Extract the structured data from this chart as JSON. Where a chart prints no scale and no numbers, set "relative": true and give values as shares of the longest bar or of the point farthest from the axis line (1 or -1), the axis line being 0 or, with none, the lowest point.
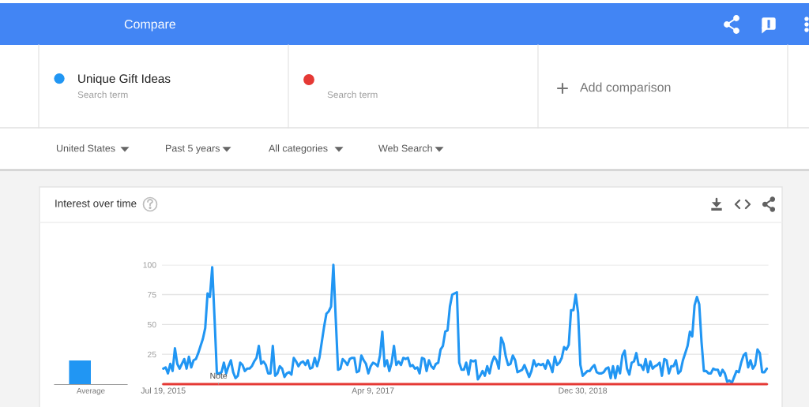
{
  "chart_data": [
    {
      "type": "bar",
      "categories": [
        "Average"
      ],
      "values": [
        1
      ],
      "color": "#2196f3",
      "relative": true
    },
    {
      "type": "line",
      "title": "Interest over time",
      "x": [
        "2015-07-19",
        "2015-07-26",
        "2015-08-02",
        "2015-08-09",
        "2015-08-16",
        "2015-08-23",
        "2015-08-30",
        "2015-09-06",
        "2015-09-13",
        "2015-09-20",
        "2015-09-27",
        "2015-10-04",
        "2015-10-11",
        "2015-10-18",
        "2015-10-25",
        "2015-11-01",
        "2015-11-08",
        "2015-11-15",
        "2015-11-22",
        "2015-11-29",
        "2015-12-06",
        "2015-12-13",
        "2015-12-20",
        "2015-12-27",
        "2016-01-03",
        "2016-01-10",
        "2016-01-17",
        "2016-01-24",
        "2016-01-31",
        "2016-02-07",
        "2016-02-14",
        "2016-02-21",
        "2016-02-28",
        "2016-03-06",
        "2016-03-13",
        "2016-03-20",
        "2016-03-27",
        "2016-04-03",
        "2016-04-10",
        "2016-04-17",
        "2016-04-24",
        "2016-05-01",
        "2016-05-08",
        "2016-05-15",
        "2016-05-22",
        "2016-05-29",
        "2016-06-05",
        "2016-06-12",
        "2016-06-19",
        "2016-06-26",
        "2016-07-03",
        "2016-07-10",
        "2016-07-17",
        "2016-07-24",
        "2016-07-31",
        "2016-08-07",
        "2016-08-14",
        "2016-08-21",
        "2016-08-28",
        "2016-09-04",
        "2016-09-11",
        "2016-09-18",
        "2016-09-25",
        "2016-10-02",
        "2016-10-09",
        "2016-10-16",
        "2016-10-23",
        "2016-10-30",
        "2016-11-06",
        "2016-11-13",
        "2016-11-20",
        "2016-11-27",
        "2016-12-04",
        "2016-12-11",
        "2016-12-18",
        "2016-12-25",
        "2017-01-01",
        "2017-01-08",
        "2017-01-15",
        "2017-01-22",
        "2017-01-29",
        "2017-02-05",
        "2017-02-12",
        "2017-02-19",
        "2017-02-26",
        "2017-03-05",
        "2017-03-12",
        "2017-03-19",
        "2017-03-26",
        "2017-04-02",
        "2017-04-09",
        "2017-04-16",
        "2017-04-23",
        "2017-04-30",
        "2017-05-07",
        "2017-05-14",
        "2017-05-21",
        "2017-05-28",
        "2017-06-04",
        "2017-06-11",
        "2017-06-18",
        "2017-06-25",
        "2017-07-02",
        "2017-07-09",
        "2017-07-16",
        "2017-07-23",
        "2017-07-30",
        "2017-08-06",
        "2017-08-13",
        "2017-08-20",
        "2017-08-27",
        "2017-09-03",
        "2017-09-10",
        "2017-09-17",
        "2017-09-24",
        "2017-10-01",
        "2017-10-08",
        "2017-10-15",
        "2017-10-22",
        "2017-10-29",
        "2017-11-05",
        "2017-11-12",
        "2017-11-19",
        "2017-11-26",
        "2017-12-03",
        "2017-12-10",
        "2017-12-17",
        "2017-12-24",
        "2017-12-31",
        "2018-01-07",
        "2018-01-14",
        "2018-01-21",
        "2018-01-28",
        "2018-02-04",
        "2018-02-11",
        "2018-02-18",
        "2018-02-25",
        "2018-03-04",
        "2018-03-11",
        "2018-03-18",
        "2018-03-25",
        "2018-04-01",
        "2018-04-08",
        "2018-04-15",
        "2018-04-22",
        "2018-04-29",
        "2018-05-06",
        "2018-05-13",
        "2018-05-20",
        "2018-05-27",
        "2018-06-03",
        "2018-06-10",
        "2018-06-17",
        "2018-06-24",
        "2018-07-01",
        "2018-07-08",
        "2018-07-15",
        "2018-07-22",
        "2018-07-29",
        "2018-08-05",
        "2018-08-12",
        "2018-08-19",
        "2018-08-26",
        "2018-09-02",
        "2018-09-09",
        "2018-09-16",
        "2018-09-23",
        "2018-09-30",
        "2018-10-07",
        "2018-10-14",
        "2018-10-21",
        "2018-10-28",
        "2018-11-04",
        "2018-11-11",
        "2018-11-18",
        "2018-11-25",
        "2018-12-02",
        "2018-12-09",
        "2018-12-16",
        "2018-12-23",
        "2018-12-30",
        "2019-01-06",
        "2019-01-13",
        "2019-01-20",
        "2019-01-27",
        "2019-02-03",
        "2019-02-10",
        "2019-02-17",
        "2019-02-24",
        "2019-03-03",
        "2019-03-10",
        "2019-03-17",
        "2019-03-24",
        "2019-03-31",
        "2019-04-07",
        "2019-04-14",
        "2019-04-21",
        "2019-04-28",
        "2019-05-05",
        "2019-05-12",
        "2019-05-19",
        "2019-05-26",
        "2019-06-02",
        "2019-06-09",
        "2019-06-16",
        "2019-06-23",
        "2019-06-30",
        "2019-07-07",
        "2019-07-14",
        "2019-07-21",
        "2019-07-28",
        "2019-08-04",
        "2019-08-11",
        "2019-08-18",
        "2019-08-25",
        "2019-09-01",
        "2019-09-08",
        "2019-09-15",
        "2019-09-22",
        "2019-09-29",
        "2019-10-06",
        "2019-10-13",
        "2019-10-20",
        "2019-10-27",
        "2019-11-03",
        "2019-11-10",
        "2019-11-17",
        "2019-11-24",
        "2019-12-01",
        "2019-12-08",
        "2019-12-15",
        "2019-12-22",
        "2019-12-29",
        "2020-01-05",
        "2020-01-12",
        "2020-01-19",
        "2020-01-26",
        "2020-02-02",
        "2020-02-09",
        "2020-02-16",
        "2020-02-23",
        "2020-03-01",
        "2020-03-08",
        "2020-03-15",
        "2020-03-22",
        "2020-03-29",
        "2020-04-05",
        "2020-04-12",
        "2020-04-19",
        "2020-04-26",
        "2020-05-03",
        "2020-05-10",
        "2020-05-17",
        "2020-05-24",
        "2020-05-31",
        "2020-06-07",
        "2020-06-14",
        "2020-06-21",
        "2020-06-28",
        "2020-07-05"
      ],
      "series": [
        {
          "name": "Unique Gift Ideas",
          "color": "#2196f3",
          "values": [
            13,
            14,
            9,
            17,
            11,
            30,
            17,
            13,
            17,
            21,
            13,
            23,
            14,
            20,
            21,
            26,
            32,
            38,
            47,
            76,
            73,
            98,
            55,
            9,
            9,
            10,
            18,
            9,
            15,
            20,
            10,
            5,
            7,
            18,
            16,
            11,
            13,
            13,
            15,
            19,
            22,
            32,
            17,
            19,
            16,
            9,
            9,
            32,
            7,
            9,
            15,
            13,
            6,
            9,
            10,
            8,
            22,
            19,
            15,
            18,
            19,
            16,
            20,
            13,
            14,
            22,
            15,
            22,
            35,
            48,
            59,
            61,
            65,
            100,
            55,
            12,
            13,
            21,
            19,
            16,
            21,
            22,
            22,
            10,
            11,
            24,
            20,
            17,
            9,
            15,
            18,
            17,
            15,
            24,
            44,
            15,
            20,
            11,
            18,
            32,
            16,
            19,
            16,
            22,
            21,
            22,
            15,
            16,
            13,
            14,
            9,
            22,
            21,
            11,
            20,
            15,
            13,
            17,
            18,
            29,
            32,
            44,
            45,
            65,
            75,
            76,
            77,
            18,
            12,
            12,
            18,
            8,
            20,
            19,
            20,
            4,
            7,
            11,
            7,
            15,
            9,
            18,
            23,
            20,
            13,
            39,
            34,
            23,
            16,
            17,
            24,
            20,
            10,
            11,
            12,
            16,
            11,
            6,
            11,
            20,
            15,
            17,
            16,
            17,
            13,
            20,
            16,
            10,
            23,
            16,
            18,
            22,
            31,
            29,
            33,
            62,
            62,
            75,
            60,
            16,
            7,
            9,
            11,
            11,
            14,
            16,
            10,
            9,
            9,
            10,
            13,
            14,
            5,
            15,
            5,
            15,
            9,
            24,
            28,
            13,
            8,
            18,
            19,
            26,
            16,
            16,
            12,
            21,
            10,
            19,
            13,
            15,
            16,
            18,
            7,
            21,
            20,
            9,
            15,
            15,
            20,
            9,
            11,
            20,
            26,
            32,
            44,
            40,
            66,
            73,
            67,
            35,
            11,
            11,
            9,
            9,
            13,
            12,
            12,
            7,
            12,
            9,
            2,
            3,
            1,
            6,
            11,
            10,
            18,
            24,
            26,
            14,
            20,
            13,
            16,
            29,
            26,
            10,
            10,
            13
          ]
        },
        {
          "color": "#e53935",
          "x": [
            "2015-07-19",
            "2020-07-05"
          ],
          "values": [
            0,
            0
          ]
        }
      ],
      "xlim": [
        "2015-07-15",
        "2020-07-10"
      ],
      "xticks": [
        {
          "value": "2015-07-19",
          "label": "Jul 19, 2015"
        },
        {
          "value": "2017-04-09",
          "label": "Apr 9, 2017"
        },
        {
          "value": "2018-12-30",
          "label": "Dec 30, 2018"
        }
      ],
      "ylim": [
        0,
        100
      ],
      "yticks": [
        25,
        50,
        75,
        100
      ],
      "grid": "y",
      "legend": "top",
      "annotations": [
        "Compare",
        "Search term",
        "Search term",
        "Add comparison",
        "United States",
        "Past 5 years",
        "All categories",
        "Web Search",
        {
          "text": "Note",
          "x": "2016-01-01",
          "y": 0
        }
      ]
    }
  ]
}
